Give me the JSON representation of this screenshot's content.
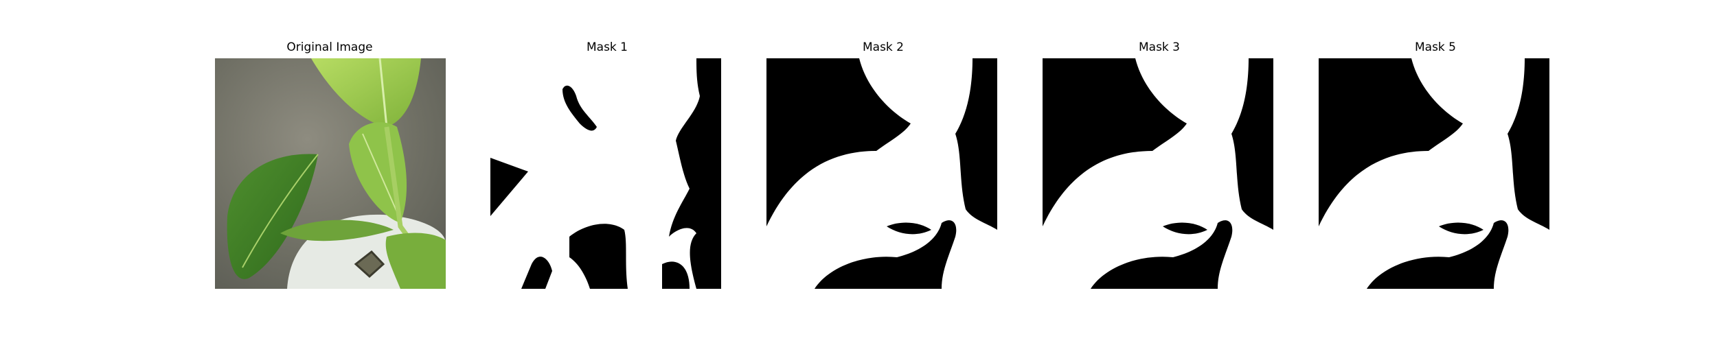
{
  "figure": {
    "panels": [
      {
        "title": "Original Image"
      },
      {
        "title": "Mask 1"
      },
      {
        "title": "Mask 2"
      },
      {
        "title": "Mask 3"
      },
      {
        "title": "Mask 5"
      }
    ]
  },
  "colors": {
    "mask_foreground": "#ffffff",
    "mask_background": "#000000",
    "photo_background": "#7d7d70",
    "leaf_light": "#9ecb4d",
    "leaf_dark": "#4e8a2a",
    "pot_white": "#e8ece6"
  }
}
